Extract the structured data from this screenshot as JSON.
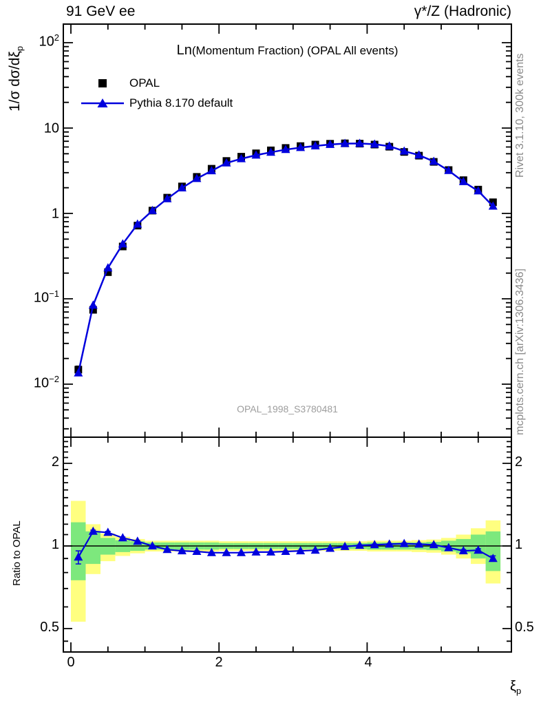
{
  "header": {
    "left": "91 GeV ee",
    "right": "γ*/Z (Hadronic)"
  },
  "plot_title": {
    "prefix": "Ln",
    "rest": "(Momentum Fraction) (OPAL All events)"
  },
  "legend": [
    {
      "label": "OPAL",
      "marker": "black-square"
    },
    {
      "label": "Pythia 8.170 default",
      "marker": "blue-line-triangle"
    }
  ],
  "watermark": "OPAL_1998_S3780481",
  "sidebar_right": {
    "top": "Rivet 3.1.10,  300k events",
    "bottom": "mcplots.cern.ch [arXiv:1306.3436]"
  },
  "axes": {
    "y_main_title": {
      "main": "1/σ dσ/dξ",
      "sub": "p"
    },
    "x_title": {
      "main": "ξ",
      "sub": "p"
    },
    "ratio_title": "Ratio to OPAL",
    "y_main_ticks": [
      {
        "base": "10",
        "exp": "2"
      },
      {
        "base": "10",
        "exp": ""
      },
      {
        "base": "1",
        "exp": ""
      },
      {
        "base": "10",
        "exp": "−1"
      },
      {
        "base": "10",
        "exp": "−2"
      }
    ],
    "x_ticks": [
      "0",
      "2",
      "4"
    ],
    "ratio_ticks": [
      "2",
      "1",
      "0.5"
    ]
  },
  "chart_data": {
    "type": "line",
    "title": "Ln(Momentum Fraction) (OPAL All events)",
    "xlabel": "ξ_p",
    "ylabel": "1/σ dσ/dξ_p",
    "ratio_ylabel": "Ratio to OPAL",
    "y_scale": "log",
    "ratio_scale": "log",
    "x_frame_range": [
      -0.1,
      5.95
    ],
    "y_frame_range": [
      0.0024,
      165
    ],
    "ratio_frame_range": [
      0.41,
      2.49
    ],
    "legend_position": "top-left",
    "x": [
      0.1,
      0.3,
      0.5,
      0.7,
      0.9,
      1.1,
      1.3,
      1.5,
      1.7,
      1.9,
      2.1,
      2.3,
      2.5,
      2.7,
      2.9,
      3.1,
      3.3,
      3.5,
      3.7,
      3.9,
      4.1,
      4.3,
      4.5,
      4.7,
      4.9,
      5.1,
      5.3,
      5.5,
      5.7
    ],
    "series": [
      {
        "name": "OPAL",
        "marker": "square",
        "color": "#000000",
        "values": [
          0.0148,
          0.0743,
          0.205,
          0.41,
          0.72,
          1.08,
          1.53,
          2.07,
          2.68,
          3.34,
          4.12,
          4.62,
          5.06,
          5.48,
          5.85,
          6.15,
          6.4,
          6.55,
          6.62,
          6.57,
          6.4,
          6.05,
          5.25,
          4.75,
          4.02,
          3.22,
          2.45,
          1.9,
          1.35
        ]
      },
      {
        "name": "Pythia 8.170 default",
        "marker": "triangle",
        "color": "#0000dd",
        "values": [
          0.0135,
          0.084,
          0.2296,
          0.4387,
          0.7488,
          1.08,
          1.4841,
          1.9872,
          2.5594,
          3.1563,
          3.8934,
          4.3659,
          4.807,
          5.206,
          5.587,
          5.904,
          6.176,
          6.419,
          6.587,
          6.603,
          6.464,
          6.141,
          5.355,
          4.821,
          4.06,
          3.172,
          2.352,
          1.8335,
          1.215
        ]
      }
    ],
    "ratio": {
      "name": "Pythia/OPAL",
      "values": [
        0.91,
        1.13,
        1.12,
        1.07,
        1.04,
        1.0,
        0.97,
        0.96,
        0.955,
        0.945,
        0.945,
        0.945,
        0.95,
        0.95,
        0.955,
        0.96,
        0.965,
        0.98,
        0.995,
        1.005,
        1.01,
        1.015,
        1.02,
        1.015,
        1.01,
        0.985,
        0.96,
        0.965,
        0.9
      ],
      "err": [
        0.05,
        0.012,
        0.01,
        0.008,
        0.006,
        0.005,
        0.005,
        0.005,
        0.005,
        0.004,
        0.004,
        0.004,
        0.004,
        0.004,
        0.004,
        0.004,
        0.004,
        0.004,
        0.004,
        0.004,
        0.005,
        0.005,
        0.006,
        0.006,
        0.007,
        0.008,
        0.01,
        0.012,
        0.02
      ]
    },
    "opal_err_rel": [
      0.1,
      0.035,
      0.02,
      0.015,
      0.012,
      0.01,
      0.008,
      0.007,
      0.006,
      0.006,
      0.005,
      0.005,
      0.005,
      0.005,
      0.005,
      0.005,
      0.005,
      0.005,
      0.005,
      0.005,
      0.006,
      0.006,
      0.007,
      0.008,
      0.009,
      0.01,
      0.012,
      0.015,
      0.025
    ],
    "bands": {
      "x_start": 0.0,
      "bin_width": 0.2,
      "green": [
        [
          0.75,
          1.22
        ],
        [
          0.86,
          1.13
        ],
        [
          0.93,
          1.07
        ],
        [
          0.95,
          1.05
        ],
        [
          0.96,
          1.04
        ],
        [
          0.97,
          1.03
        ],
        [
          0.97,
          1.03
        ],
        [
          0.97,
          1.03
        ],
        [
          0.97,
          1.03
        ],
        [
          0.97,
          1.03
        ],
        [
          0.975,
          1.025
        ],
        [
          0.975,
          1.025
        ],
        [
          0.975,
          1.025
        ],
        [
          0.975,
          1.025
        ],
        [
          0.975,
          1.025
        ],
        [
          0.975,
          1.025
        ],
        [
          0.975,
          1.025
        ],
        [
          0.975,
          1.025
        ],
        [
          0.975,
          1.025
        ],
        [
          0.975,
          1.025
        ],
        [
          0.97,
          1.03
        ],
        [
          0.97,
          1.03
        ],
        [
          0.97,
          1.03
        ],
        [
          0.97,
          1.03
        ],
        [
          0.965,
          1.035
        ],
        [
          0.955,
          1.045
        ],
        [
          0.94,
          1.06
        ],
        [
          0.9,
          1.1
        ],
        [
          0.81,
          1.13
        ]
      ],
      "yellow": [
        [
          0.53,
          1.46
        ],
        [
          0.79,
          1.2
        ],
        [
          0.88,
          1.11
        ],
        [
          0.92,
          1.08
        ],
        [
          0.94,
          1.06
        ],
        [
          0.955,
          1.045
        ],
        [
          0.955,
          1.045
        ],
        [
          0.955,
          1.045
        ],
        [
          0.955,
          1.045
        ],
        [
          0.955,
          1.045
        ],
        [
          0.96,
          1.04
        ],
        [
          0.96,
          1.04
        ],
        [
          0.96,
          1.04
        ],
        [
          0.96,
          1.04
        ],
        [
          0.96,
          1.04
        ],
        [
          0.96,
          1.04
        ],
        [
          0.96,
          1.04
        ],
        [
          0.96,
          1.04
        ],
        [
          0.96,
          1.04
        ],
        [
          0.96,
          1.04
        ],
        [
          0.955,
          1.045
        ],
        [
          0.955,
          1.045
        ],
        [
          0.955,
          1.045
        ],
        [
          0.95,
          1.05
        ],
        [
          0.945,
          1.055
        ],
        [
          0.93,
          1.07
        ],
        [
          0.9,
          1.1
        ],
        [
          0.86,
          1.16
        ],
        [
          0.73,
          1.24
        ]
      ]
    },
    "colors": {
      "pythia_blue": "#0000dd",
      "band_green": "#7de87d",
      "band_yellow": "#ffff80",
      "axis_black": "#000000",
      "gray_text": "#8a8a8a",
      "watermark_gray": "#9d9d9d"
    }
  }
}
